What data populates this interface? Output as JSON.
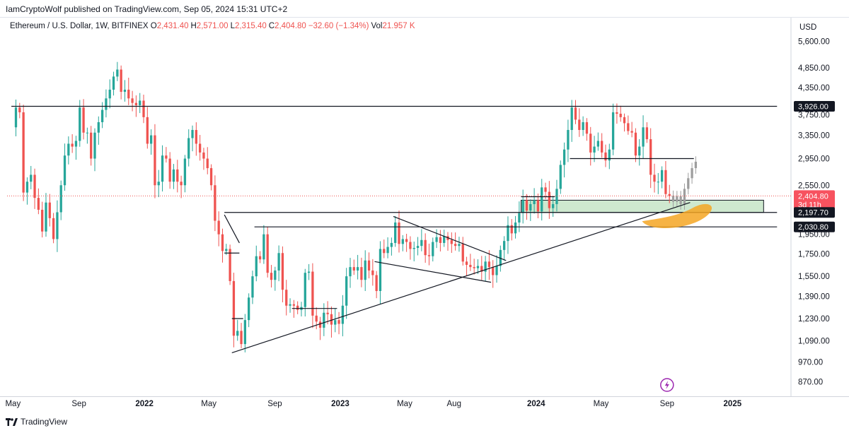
{
  "header": {
    "publisher_line": "IamCryptoWolf published on TradingView.com, Sep 05, 2024 15:31 UTC+2",
    "symbol": "Ethereum / U.S. Dollar, 1W, BITFINEX",
    "ohlc": [
      {
        "key": "O",
        "value": "2,431.40"
      },
      {
        "key": "H",
        "value": "2,571.00"
      },
      {
        "key": "L",
        "value": "2,315.40"
      },
      {
        "key": "C",
        "value": "2,404.80"
      },
      {
        "key": "",
        "value": "−32.60 (−1.34%)"
      },
      {
        "key": "Vol",
        "value": "21.957 K"
      }
    ]
  },
  "footer": {
    "brand": "TradingView"
  },
  "chart_data": {
    "type": "candlestick",
    "symbol": "ETH/USD",
    "interval": "1W",
    "exchange": "BITFINEX",
    "currency": "USD",
    "y_scale": "log",
    "ylim": [
      820,
      6400
    ],
    "xlim": [
      "2021-04-20",
      "2025-04-20"
    ],
    "y_ticks": [
      "5,600.00",
      "4,850.00",
      "4,350.00",
      "3,750.00",
      "3,350.00",
      "2,950.00",
      "2,550.00",
      "1,950.00",
      "1,750.00",
      "1,550.00",
      "1,390.00",
      "1,230.00",
      "1,090.00",
      "970.00",
      "870.00"
    ],
    "y_tick_values": [
      5600,
      4850,
      4350,
      3750,
      3350,
      2950,
      2550,
      1950,
      1750,
      1550,
      1390,
      1230,
      1090,
      970,
      870
    ],
    "x_ticks": [
      {
        "label": "May",
        "date": "2021-05-01",
        "bold": false
      },
      {
        "label": "Sep",
        "date": "2021-09-01",
        "bold": false
      },
      {
        "label": "2022",
        "date": "2022-01-01",
        "bold": true
      },
      {
        "label": "May",
        "date": "2022-05-01",
        "bold": false
      },
      {
        "label": "Sep",
        "date": "2022-09-01",
        "bold": false
      },
      {
        "label": "2023",
        "date": "2023-01-01",
        "bold": true
      },
      {
        "label": "May",
        "date": "2023-05-01",
        "bold": false
      },
      {
        "label": "Aug",
        "date": "2023-08-01",
        "bold": false
      },
      {
        "label": "2024",
        "date": "2024-01-01",
        "bold": true
      },
      {
        "label": "May",
        "date": "2024-05-01",
        "bold": false
      },
      {
        "label": "Sep",
        "date": "2024-09-01",
        "bold": false
      },
      {
        "label": "2025",
        "date": "2025-01-01",
        "bold": true
      }
    ],
    "axis_title": "USD",
    "price_tags": [
      {
        "label": "3,926.00",
        "price": 3926,
        "style": "dark"
      },
      {
        "label": "2,404.80",
        "price": 2404.8,
        "style": "red",
        "sub": "3d 11h"
      },
      {
        "label": "2,197.70",
        "price": 2197.7,
        "style": "dark"
      },
      {
        "label": "2,030.80",
        "price": 2030.8,
        "style": "dark"
      }
    ],
    "last_price": 2404.8,
    "colors": {
      "up": "#26a69a",
      "down": "#ef5350",
      "projection": "#9e9e9e",
      "line": "#131722",
      "zone": "#a5d6a7",
      "highlight": "#f5a623"
    },
    "closes": [
      [
        "2021-05-03",
        3900
      ],
      [
        "2021-05-10",
        3800
      ],
      [
        "2021-05-17",
        2450
      ],
      [
        "2021-05-24",
        2600
      ],
      [
        "2021-05-31",
        2700
      ],
      [
        "2021-06-07",
        2380
      ],
      [
        "2021-06-14",
        2230
      ],
      [
        "2021-06-21",
        1980
      ],
      [
        "2021-06-28",
        2320
      ],
      [
        "2021-07-05",
        2130
      ],
      [
        "2021-07-12",
        1900
      ],
      [
        "2021-07-19",
        2200
      ],
      [
        "2021-07-26",
        2550
      ],
      [
        "2021-08-02",
        3000
      ],
      [
        "2021-08-09",
        3200
      ],
      [
        "2021-08-16",
        3150
      ],
      [
        "2021-08-23",
        3250
      ],
      [
        "2021-08-30",
        3900
      ],
      [
        "2021-09-06",
        3400
      ],
      [
        "2021-09-13",
        3400
      ],
      [
        "2021-09-20",
        2950
      ],
      [
        "2021-09-27",
        3400
      ],
      [
        "2021-10-04",
        3600
      ],
      [
        "2021-10-11",
        3850
      ],
      [
        "2021-10-18",
        4100
      ],
      [
        "2021-10-25",
        4300
      ],
      [
        "2021-11-01",
        4620
      ],
      [
        "2021-11-08",
        4800
      ],
      [
        "2021-11-15",
        4250
      ],
      [
        "2021-11-22",
        4300
      ],
      [
        "2021-11-29",
        4100
      ],
      [
        "2021-12-06",
        4000
      ],
      [
        "2021-12-13",
        3950
      ],
      [
        "2021-12-20",
        4050
      ],
      [
        "2021-12-27",
        3700
      ],
      [
        "2022-01-03",
        3200
      ],
      [
        "2022-01-10",
        3350
      ],
      [
        "2022-01-17",
        2550
      ],
      [
        "2022-01-24",
        2600
      ],
      [
        "2022-01-31",
        3000
      ],
      [
        "2022-02-07",
        2950
      ],
      [
        "2022-02-14",
        2600
      ],
      [
        "2022-02-21",
        2780
      ],
      [
        "2022-02-28",
        2600
      ],
      [
        "2022-03-07",
        2550
      ],
      [
        "2022-03-14",
        2950
      ],
      [
        "2022-03-21",
        3300
      ],
      [
        "2022-03-28",
        3450
      ],
      [
        "2022-04-04",
        3200
      ],
      [
        "2022-04-11",
        3050
      ],
      [
        "2022-04-18",
        2950
      ],
      [
        "2022-04-25",
        2800
      ],
      [
        "2022-05-02",
        2550
      ],
      [
        "2022-05-09",
        2100
      ],
      [
        "2022-05-16",
        1950
      ],
      [
        "2022-05-23",
        1780
      ],
      [
        "2022-05-30",
        1800
      ],
      [
        "2022-06-06",
        1510
      ],
      [
        "2022-06-13",
        1120
      ],
      [
        "2022-06-20",
        1150
      ],
      [
        "2022-06-27",
        1070
      ],
      [
        "2022-07-04",
        1220
      ],
      [
        "2022-07-11",
        1380
      ],
      [
        "2022-07-18",
        1550
      ],
      [
        "2022-07-25",
        1730
      ],
      [
        "2022-08-01",
        1700
      ],
      [
        "2022-08-08",
        1950
      ],
      [
        "2022-08-15",
        1580
      ],
      [
        "2022-08-22",
        1520
      ],
      [
        "2022-08-29",
        1600
      ],
      [
        "2022-09-05",
        1760
      ],
      [
        "2022-09-12",
        1440
      ],
      [
        "2022-09-19",
        1320
      ],
      [
        "2022-09-26",
        1330
      ],
      [
        "2022-10-03",
        1320
      ],
      [
        "2022-10-10",
        1290
      ],
      [
        "2022-10-17",
        1310
      ],
      [
        "2022-10-24",
        1580
      ],
      [
        "2022-10-31",
        1590
      ],
      [
        "2022-11-07",
        1250
      ],
      [
        "2022-11-14",
        1210
      ],
      [
        "2022-11-21",
        1170
      ],
      [
        "2022-11-28",
        1270
      ],
      [
        "2022-12-05",
        1260
      ],
      [
        "2022-12-12",
        1190
      ],
      [
        "2022-12-19",
        1220
      ],
      [
        "2022-12-26",
        1195
      ],
      [
        "2023-01-02",
        1320
      ],
      [
        "2023-01-09",
        1550
      ],
      [
        "2023-01-16",
        1630
      ],
      [
        "2023-01-23",
        1600
      ],
      [
        "2023-01-30",
        1630
      ],
      [
        "2023-02-06",
        1520
      ],
      [
        "2023-02-13",
        1690
      ],
      [
        "2023-02-20",
        1600
      ],
      [
        "2023-02-27",
        1560
      ],
      [
        "2023-03-06",
        1430
      ],
      [
        "2023-03-13",
        1800
      ],
      [
        "2023-03-20",
        1760
      ],
      [
        "2023-03-27",
        1820
      ],
      [
        "2023-04-03",
        1860
      ],
      [
        "2023-04-10",
        2080
      ],
      [
        "2023-04-17",
        1850
      ],
      [
        "2023-04-24",
        1900
      ],
      [
        "2023-05-01",
        1870
      ],
      [
        "2023-05-08",
        1800
      ],
      [
        "2023-05-15",
        1810
      ],
      [
        "2023-05-22",
        1830
      ],
      [
        "2023-05-29",
        1890
      ],
      [
        "2023-06-05",
        1740
      ],
      [
        "2023-06-12",
        1730
      ],
      [
        "2023-06-19",
        1870
      ],
      [
        "2023-06-26",
        1920
      ],
      [
        "2023-07-03",
        1860
      ],
      [
        "2023-07-10",
        1930
      ],
      [
        "2023-07-17",
        1890
      ],
      [
        "2023-07-24",
        1850
      ],
      [
        "2023-07-31",
        1830
      ],
      [
        "2023-08-07",
        1850
      ],
      [
        "2023-08-14",
        1680
      ],
      [
        "2023-08-21",
        1650
      ],
      [
        "2023-08-28",
        1630
      ],
      [
        "2023-09-04",
        1620
      ],
      [
        "2023-09-11",
        1640
      ],
      [
        "2023-09-18",
        1590
      ],
      [
        "2023-09-25",
        1680
      ],
      [
        "2023-10-02",
        1630
      ],
      [
        "2023-10-09",
        1560
      ],
      [
        "2023-10-16",
        1640
      ],
      [
        "2023-10-23",
        1790
      ],
      [
        "2023-10-30",
        1880
      ],
      [
        "2023-11-06",
        2050
      ],
      [
        "2023-11-13",
        1960
      ],
      [
        "2023-11-20",
        2080
      ],
      [
        "2023-11-27",
        2190
      ],
      [
        "2023-12-04",
        2350
      ],
      [
        "2023-12-11",
        2220
      ],
      [
        "2023-12-18",
        2300
      ],
      [
        "2023-12-25",
        2350
      ],
      [
        "2024-01-01",
        2210
      ],
      [
        "2024-01-08",
        2520
      ],
      [
        "2024-01-15",
        2460
      ],
      [
        "2024-01-22",
        2250
      ],
      [
        "2024-01-29",
        2300
      ],
      [
        "2024-02-05",
        2500
      ],
      [
        "2024-02-12",
        2850
      ],
      [
        "2024-02-19",
        3100
      ],
      [
        "2024-02-26",
        3450
      ],
      [
        "2024-03-04",
        3900
      ],
      [
        "2024-03-11",
        3650
      ],
      [
        "2024-03-18",
        3450
      ],
      [
        "2024-03-25",
        3600
      ],
      [
        "2024-04-01",
        3380
      ],
      [
        "2024-04-08",
        3050
      ],
      [
        "2024-04-15",
        3150
      ],
      [
        "2024-04-22",
        3250
      ],
      [
        "2024-04-29",
        3050
      ],
      [
        "2024-05-06",
        2920
      ],
      [
        "2024-05-13",
        3100
      ],
      [
        "2024-05-20",
        3800
      ],
      [
        "2024-05-27",
        3770
      ],
      [
        "2024-06-03",
        3700
      ],
      [
        "2024-06-10",
        3580
      ],
      [
        "2024-06-17",
        3430
      ],
      [
        "2024-06-24",
        3400
      ],
      [
        "2024-07-01",
        3000
      ],
      [
        "2024-07-08",
        3150
      ],
      [
        "2024-07-15",
        3500
      ],
      [
        "2024-07-22",
        3280
      ],
      [
        "2024-07-29",
        2700
      ],
      [
        "2024-08-05",
        2600
      ],
      [
        "2024-08-12",
        2600
      ],
      [
        "2024-08-19",
        2770
      ],
      [
        "2024-08-26",
        2430
      ],
      [
        "2024-09-02",
        2404.8
      ]
    ],
    "projection": [
      [
        "2024-09-09",
        2330
      ],
      [
        "2024-09-16",
        2400
      ],
      [
        "2024-09-23",
        2300
      ],
      [
        "2024-09-30",
        2500
      ],
      [
        "2024-10-07",
        2650
      ],
      [
        "2024-10-14",
        2800
      ],
      [
        "2024-10-21",
        2900
      ]
    ],
    "horizontal_levels": [
      {
        "price": 3926,
        "from": "2021-04-28",
        "to": "2025-03-25"
      },
      {
        "price": 2950,
        "from": "2024-03-04",
        "to": "2024-10-21"
      },
      {
        "price": 2197.7,
        "from": "2022-05-30",
        "to": "2025-03-25"
      },
      {
        "price": 2030.8,
        "from": "2022-07-25",
        "to": "2025-03-25"
      }
    ],
    "trend_lines": [
      {
        "from": [
          "2022-06-13",
          1020
        ],
        "to": [
          "2024-10-14",
          2320
        ]
      },
      {
        "from": [
          "2023-04-10",
          2150
        ],
        "to": [
          "2023-11-06",
          1690
        ]
      },
      {
        "from": [
          "2023-03-06",
          1680
        ],
        "to": [
          "2023-10-09",
          1500
        ]
      },
      {
        "from": [
          "2022-05-30",
          2170
        ],
        "to": [
          "2022-06-27",
          1860
        ]
      }
    ],
    "short_lines": [
      {
        "price": 1760,
        "from": "2022-05-30",
        "to": "2022-06-27"
      },
      {
        "price": 1230,
        "from": "2022-06-13",
        "to": "2022-07-04"
      },
      {
        "price": 1300,
        "from": "2022-10-03",
        "to": "2022-12-26"
      },
      {
        "price": 2395,
        "from": "2023-12-04",
        "to": "2024-02-05"
      }
    ],
    "zone": {
      "from": "2023-12-04",
      "to": "2025-02-28",
      "low": 2197.7,
      "high": 2404.8
    },
    "highlight": {
      "center_date": "2024-09-23",
      "price": 2110,
      "label": ""
    }
  }
}
